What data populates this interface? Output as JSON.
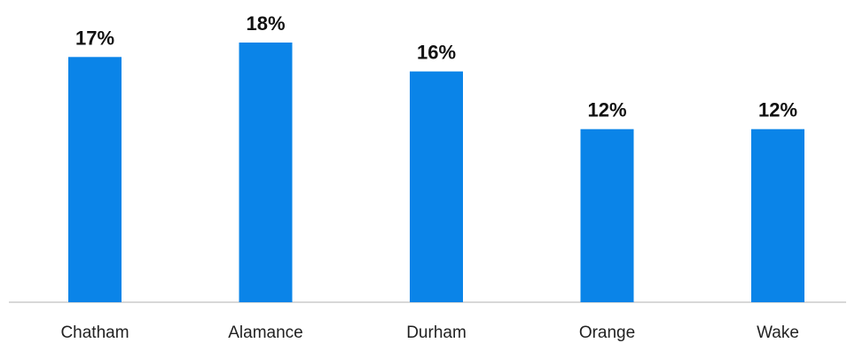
{
  "chart_data": {
    "type": "bar",
    "categories": [
      "Chatham",
      "Alamance",
      "Durham",
      "Orange",
      "Wake"
    ],
    "values": [
      17,
      18,
      16,
      12,
      12
    ],
    "value_labels": [
      "17%",
      "18%",
      "16%",
      "12%",
      "12%"
    ],
    "unit": "%",
    "ylim": [
      0,
      18
    ],
    "grid": false,
    "legend": "none",
    "title": "",
    "xlabel": "",
    "ylabel": ""
  },
  "colors": {
    "bar": "#0a84e8",
    "axis": "#cccccc",
    "value_text": "#111111",
    "label_text": "#222222"
  }
}
